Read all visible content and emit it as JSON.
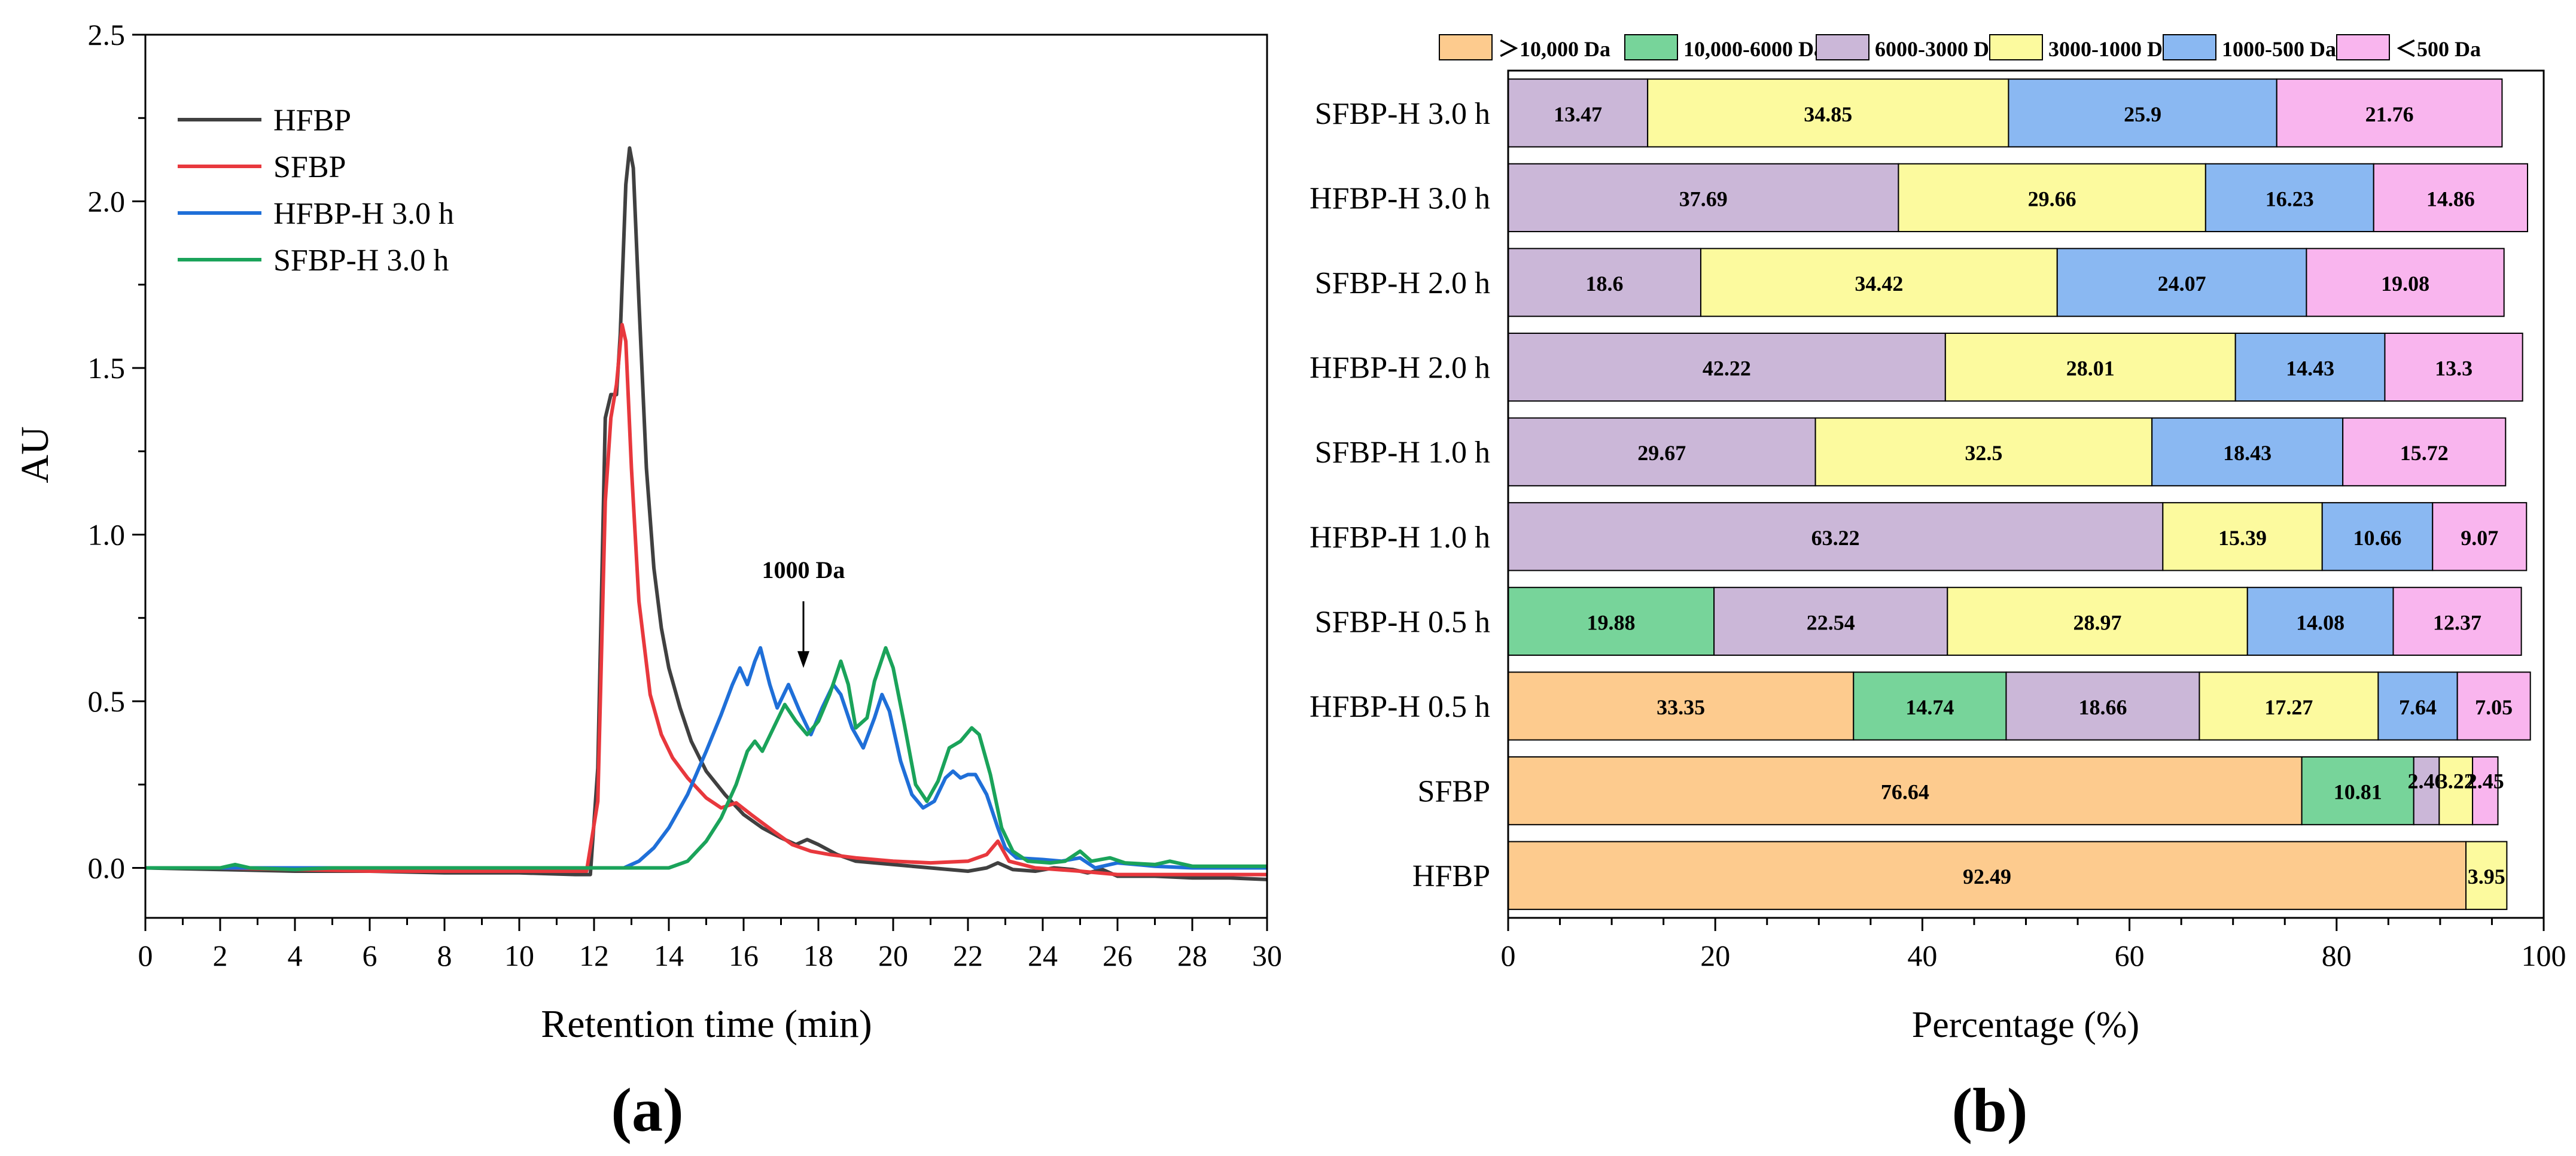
{
  "panel_labels": {
    "a": "(a)",
    "b": "(b)"
  },
  "chart_data": [
    {
      "type": "line",
      "panel": "(a)",
      "xlabel": "Retention time (min)",
      "ylabel": "AU",
      "xlim": [
        0,
        30
      ],
      "ylim": [
        -0.15,
        2.5
      ],
      "xticks": [
        "0",
        "2",
        "4",
        "6",
        "8",
        "10",
        "12",
        "14",
        "16",
        "18",
        "20",
        "22",
        "24",
        "26",
        "28",
        "30"
      ],
      "yticks": [
        "0.0",
        "0.5",
        "1.0",
        "1.5",
        "2.0",
        "2.5"
      ],
      "grid": false,
      "legend_position": "top-left",
      "annotation": {
        "text": "1000 Da",
        "x": 17.6,
        "y_text": 0.87,
        "arrow_from": 0.8,
        "arrow_to": 0.6
      },
      "series": [
        {
          "name": "HFBP",
          "color": "#404040",
          "points": [
            [
              0,
              0
            ],
            [
              2,
              -0.005
            ],
            [
              4,
              -0.01
            ],
            [
              6,
              -0.01
            ],
            [
              8,
              -0.015
            ],
            [
              10,
              -0.015
            ],
            [
              11.5,
              -0.02
            ],
            [
              11.9,
              -0.02
            ],
            [
              12.1,
              0.3
            ],
            [
              12.3,
              1.35
            ],
            [
              12.45,
              1.42
            ],
            [
              12.6,
              1.42
            ],
            [
              12.7,
              1.6
            ],
            [
              12.85,
              2.05
            ],
            [
              12.95,
              2.16
            ],
            [
              13.05,
              2.1
            ],
            [
              13.2,
              1.7
            ],
            [
              13.4,
              1.2
            ],
            [
              13.6,
              0.9
            ],
            [
              13.8,
              0.72
            ],
            [
              14.0,
              0.6
            ],
            [
              14.3,
              0.48
            ],
            [
              14.6,
              0.38
            ],
            [
              15.0,
              0.29
            ],
            [
              15.5,
              0.22
            ],
            [
              16.0,
              0.16
            ],
            [
              16.5,
              0.12
            ],
            [
              17.0,
              0.09
            ],
            [
              17.4,
              0.07
            ],
            [
              17.7,
              0.085
            ],
            [
              18.0,
              0.07
            ],
            [
              18.5,
              0.04
            ],
            [
              19.0,
              0.02
            ],
            [
              20.0,
              0.01
            ],
            [
              21.0,
              0.0
            ],
            [
              22.0,
              -0.01
            ],
            [
              22.5,
              0.0
            ],
            [
              22.8,
              0.015
            ],
            [
              23.2,
              -0.005
            ],
            [
              23.8,
              -0.01
            ],
            [
              24.3,
              0.0
            ],
            [
              24.8,
              -0.005
            ],
            [
              25.2,
              -0.015
            ],
            [
              25.6,
              -0.005
            ],
            [
              26.0,
              -0.025
            ],
            [
              27.0,
              -0.025
            ],
            [
              28.0,
              -0.03
            ],
            [
              29.0,
              -0.03
            ],
            [
              30.0,
              -0.035
            ]
          ]
        },
        {
          "name": "SFBP",
          "color": "#e8383d",
          "points": [
            [
              0,
              0
            ],
            [
              2,
              0.0
            ],
            [
              4,
              -0.005
            ],
            [
              6,
              -0.01
            ],
            [
              8,
              -0.01
            ],
            [
              10,
              -0.01
            ],
            [
              11.8,
              -0.01
            ],
            [
              12.1,
              0.2
            ],
            [
              12.3,
              1.1
            ],
            [
              12.45,
              1.35
            ],
            [
              12.6,
              1.45
            ],
            [
              12.75,
              1.63
            ],
            [
              12.85,
              1.58
            ],
            [
              13.0,
              1.2
            ],
            [
              13.2,
              0.8
            ],
            [
              13.5,
              0.52
            ],
            [
              13.8,
              0.4
            ],
            [
              14.1,
              0.33
            ],
            [
              14.5,
              0.27
            ],
            [
              15.0,
              0.21
            ],
            [
              15.4,
              0.18
            ],
            [
              15.8,
              0.195
            ],
            [
              16.2,
              0.16
            ],
            [
              16.8,
              0.11
            ],
            [
              17.3,
              0.07
            ],
            [
              17.8,
              0.05
            ],
            [
              18.3,
              0.04
            ],
            [
              19.0,
              0.03
            ],
            [
              20.0,
              0.02
            ],
            [
              21.0,
              0.015
            ],
            [
              22.0,
              0.02
            ],
            [
              22.5,
              0.04
            ],
            [
              22.8,
              0.08
            ],
            [
              23.1,
              0.02
            ],
            [
              23.8,
              0.0
            ],
            [
              25.0,
              -0.01
            ],
            [
              26.0,
              -0.02
            ],
            [
              28.0,
              -0.02
            ],
            [
              30.0,
              -0.02
            ]
          ]
        },
        {
          "name": "HFBP-H 3.0 h",
          "color": "#1f6fd8",
          "points": [
            [
              0,
              0
            ],
            [
              10,
              0.0
            ],
            [
              12.8,
              0.0
            ],
            [
              13.2,
              0.02
            ],
            [
              13.6,
              0.06
            ],
            [
              14.0,
              0.12
            ],
            [
              14.5,
              0.22
            ],
            [
              15.0,
              0.35
            ],
            [
              15.4,
              0.46
            ],
            [
              15.7,
              0.55
            ],
            [
              15.9,
              0.6
            ],
            [
              16.1,
              0.55
            ],
            [
              16.3,
              0.62
            ],
            [
              16.45,
              0.66
            ],
            [
              16.7,
              0.55
            ],
            [
              16.9,
              0.48
            ],
            [
              17.2,
              0.55
            ],
            [
              17.5,
              0.47
            ],
            [
              17.8,
              0.4
            ],
            [
              18.1,
              0.48
            ],
            [
              18.4,
              0.55
            ],
            [
              18.6,
              0.52
            ],
            [
              18.9,
              0.42
            ],
            [
              19.2,
              0.36
            ],
            [
              19.5,
              0.45
            ],
            [
              19.7,
              0.52
            ],
            [
              19.9,
              0.47
            ],
            [
              20.2,
              0.32
            ],
            [
              20.5,
              0.22
            ],
            [
              20.8,
              0.18
            ],
            [
              21.1,
              0.2
            ],
            [
              21.4,
              0.27
            ],
            [
              21.6,
              0.29
            ],
            [
              21.8,
              0.27
            ],
            [
              22.0,
              0.28
            ],
            [
              22.2,
              0.28
            ],
            [
              22.5,
              0.22
            ],
            [
              22.8,
              0.12
            ],
            [
              23.0,
              0.06
            ],
            [
              23.3,
              0.03
            ],
            [
              24.0,
              0.025
            ],
            [
              24.5,
              0.02
            ],
            [
              25.0,
              0.03
            ],
            [
              25.4,
              0.0
            ],
            [
              26.0,
              0.015
            ],
            [
              27.0,
              0.005
            ],
            [
              28.0,
              0.0
            ],
            [
              30.0,
              0.0
            ]
          ]
        },
        {
          "name": "SFBP-H 3.0 h",
          "color": "#1aa35a",
          "points": [
            [
              0,
              0
            ],
            [
              2,
              0.0
            ],
            [
              2.4,
              0.01
            ],
            [
              2.8,
              0.0
            ],
            [
              4,
              -0.005
            ],
            [
              5,
              0.0
            ],
            [
              10,
              0.0
            ],
            [
              14.0,
              0.0
            ],
            [
              14.5,
              0.02
            ],
            [
              15.0,
              0.08
            ],
            [
              15.4,
              0.15
            ],
            [
              15.8,
              0.25
            ],
            [
              16.1,
              0.35
            ],
            [
              16.3,
              0.38
            ],
            [
              16.5,
              0.35
            ],
            [
              16.8,
              0.42
            ],
            [
              17.1,
              0.49
            ],
            [
              17.4,
              0.44
            ],
            [
              17.7,
              0.4
            ],
            [
              18.0,
              0.44
            ],
            [
              18.3,
              0.52
            ],
            [
              18.6,
              0.62
            ],
            [
              18.8,
              0.55
            ],
            [
              19.0,
              0.42
            ],
            [
              19.3,
              0.45
            ],
            [
              19.5,
              0.56
            ],
            [
              19.8,
              0.66
            ],
            [
              20.0,
              0.6
            ],
            [
              20.3,
              0.43
            ],
            [
              20.6,
              0.25
            ],
            [
              20.9,
              0.2
            ],
            [
              21.2,
              0.26
            ],
            [
              21.5,
              0.36
            ],
            [
              21.8,
              0.38
            ],
            [
              22.1,
              0.42
            ],
            [
              22.3,
              0.4
            ],
            [
              22.6,
              0.28
            ],
            [
              22.9,
              0.12
            ],
            [
              23.2,
              0.05
            ],
            [
              23.6,
              0.02
            ],
            [
              24.2,
              0.015
            ],
            [
              24.6,
              0.02
            ],
            [
              25.0,
              0.05
            ],
            [
              25.3,
              0.02
            ],
            [
              25.8,
              0.03
            ],
            [
              26.2,
              0.015
            ],
            [
              27.0,
              0.01
            ],
            [
              27.4,
              0.02
            ],
            [
              28.0,
              0.005
            ],
            [
              30.0,
              0.005
            ]
          ]
        }
      ]
    },
    {
      "type": "bar",
      "orientation": "horizontal",
      "stacked": true,
      "panel": "(b)",
      "xlabel": "Percentage (%)",
      "xlim": [
        0,
        100
      ],
      "xticks": [
        "0",
        "20",
        "40",
        "60",
        "80",
        "100"
      ],
      "grid": false,
      "legend_position": "top",
      "legend": [
        {
          "label": "＞10,000 Da",
          "color": "#fdcb8e"
        },
        {
          "label": "10,000-6000 Da",
          "color": "#77d49a"
        },
        {
          "label": "6000-3000 Da",
          "color": "#cbb7d8"
        },
        {
          "label": "3000-1000 Da",
          "color": "#fcfa9e"
        },
        {
          "label": "1000-500 Da",
          "color": "#8ab8f2"
        },
        {
          "label": "＜500 Da",
          "color": "#f9b5ee"
        }
      ],
      "categories": [
        "SFBP-H 3.0 h",
        "HFBP-H 3.0 h",
        "SFBP-H 2.0 h",
        "HFBP-H 2.0 h",
        "SFBP-H 1.0 h",
        "HFBP-H 1.0 h",
        "SFBP-H 0.5 h",
        "HFBP-H 0.5 h",
        "SFBP",
        "HFBP"
      ],
      "rows": [
        [
          0,
          0,
          13.47,
          34.85,
          25.9,
          21.76
        ],
        [
          0,
          0,
          37.69,
          29.66,
          16.23,
          14.86
        ],
        [
          0,
          0,
          18.6,
          34.42,
          24.07,
          19.08
        ],
        [
          0,
          0,
          42.22,
          28.01,
          14.43,
          13.3
        ],
        [
          0,
          0,
          29.67,
          32.5,
          18.43,
          15.72
        ],
        [
          0,
          0,
          63.22,
          15.39,
          10.66,
          9.07
        ],
        [
          0,
          19.88,
          22.54,
          28.97,
          14.08,
          12.37
        ],
        [
          33.35,
          14.74,
          18.66,
          17.27,
          7.64,
          7.05
        ],
        [
          76.64,
          10.81,
          2.46,
          3.22,
          0,
          2.45
        ],
        [
          92.49,
          0,
          0,
          3.95,
          0,
          0
        ]
      ],
      "labels": [
        [
          "",
          "",
          "13.47",
          "34.85",
          "25.9",
          "21.76"
        ],
        [
          "",
          "",
          "37.69",
          "29.66",
          "16.23",
          "14.86"
        ],
        [
          "",
          "",
          "18.6",
          "34.42",
          "24.07",
          "19.08"
        ],
        [
          "",
          "",
          "42.22",
          "28.01",
          "14.43",
          "13.3"
        ],
        [
          "",
          "",
          "29.67",
          "32.5",
          "18.43",
          "15.72"
        ],
        [
          "",
          "",
          "63.22",
          "15.39",
          "10.66",
          "9.07"
        ],
        [
          "",
          "19.88",
          "22.54",
          "28.97",
          "14.08",
          "12.37"
        ],
        [
          "33.35",
          "14.74",
          "18.66",
          "17.27",
          "7.64",
          "7.05"
        ],
        [
          "76.64",
          "10.81",
          "2.46",
          "3.22",
          "",
          "2.45"
        ],
        [
          "92.49",
          "",
          "",
          "3.95",
          "",
          ""
        ]
      ]
    }
  ]
}
